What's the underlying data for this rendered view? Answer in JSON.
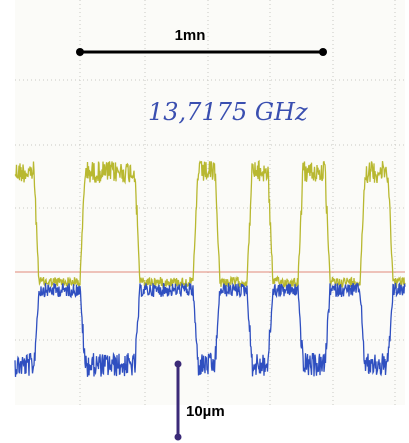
{
  "scale_bar_time": {
    "label": "1mn"
  },
  "frequency_note": {
    "label": "13,7175 GHz"
  },
  "scale_bar_amplitude": {
    "label": "10µm"
  }
}
